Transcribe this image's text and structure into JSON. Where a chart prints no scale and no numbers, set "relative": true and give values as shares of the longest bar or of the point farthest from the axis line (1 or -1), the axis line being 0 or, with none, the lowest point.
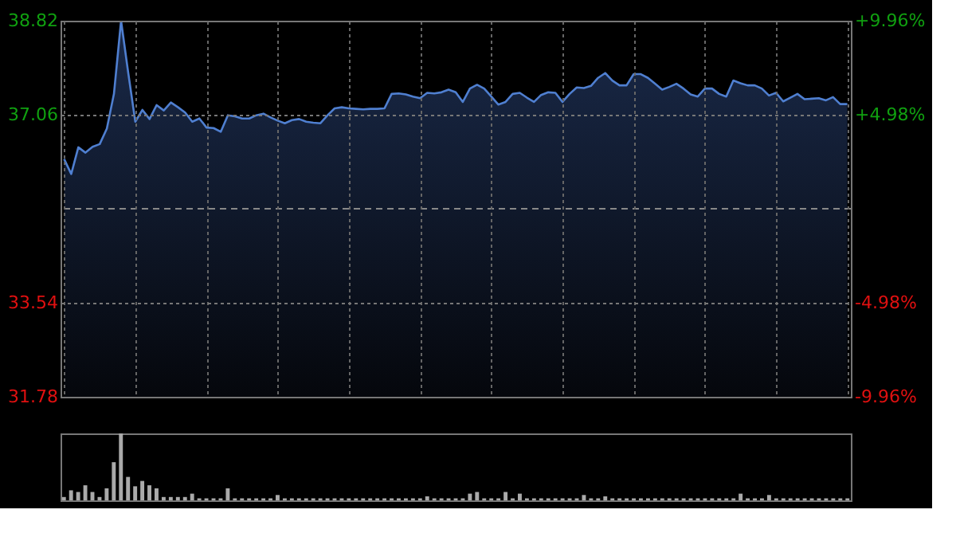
{
  "chart_data": [
    {
      "type": "area",
      "categories": [
        null,
        null,
        null,
        null,
        null,
        null,
        null,
        null,
        null,
        null,
        null,
        null,
        null,
        null,
        null,
        null,
        null,
        null,
        null,
        null,
        null,
        null,
        null,
        null,
        null,
        null,
        null,
        null,
        null,
        null,
        null,
        null,
        null,
        null,
        null,
        null,
        null,
        null,
        null,
        null,
        null,
        null,
        null,
        null,
        null,
        null,
        null,
        null,
        null,
        null,
        null,
        null,
        null,
        null,
        null,
        null,
        null,
        null,
        null,
        null,
        null,
        null,
        null,
        null,
        null,
        null,
        null,
        null,
        null,
        null,
        null,
        null,
        null,
        null,
        null,
        null,
        null,
        null,
        null,
        null,
        null,
        null,
        null,
        null,
        null,
        null,
        null,
        null,
        null,
        null,
        null,
        null,
        null,
        null,
        null,
        null,
        null,
        null,
        null,
        null,
        null,
        null,
        null,
        null,
        null,
        null,
        null,
        null,
        null,
        null,
        null
      ],
      "ylim": [
        31.78,
        38.82
      ],
      "yticks": [
        31.78,
        33.54,
        37.06,
        38.82
      ],
      "y2lim": [
        -9.96,
        9.96
      ],
      "y2ticks": [
        {
          "value": -9.96,
          "label": "-9.96%"
        },
        {
          "value": -4.98,
          "label": "-4.98%"
        },
        {
          "value": 4.98,
          "label": "+4.98%"
        },
        {
          "value": 9.96,
          "label": "+9.96%"
        }
      ],
      "grid": true,
      "tick_labels": "y",
      "line_style": "solid",
      "ref_lines": [
        {
          "axis": "y2",
          "value": 0,
          "color": "#888888",
          "line_style": "dashed"
        }
      ],
      "series": [
        {
          "color": "#4f7fd0",
          "values": [
            36.23,
            35.95,
            36.45,
            36.35,
            36.46,
            36.51,
            36.8,
            37.45,
            38.82,
            37.85,
            36.93,
            37.15,
            36.98,
            37.24,
            37.14,
            37.29,
            37.2,
            37.1,
            36.93,
            36.99,
            36.82,
            36.81,
            36.74,
            37.05,
            37.03,
            36.99,
            36.99,
            37.05,
            37.08,
            37.01,
            36.95,
            36.9,
            36.96,
            36.98,
            36.93,
            36.91,
            36.9,
            37.05,
            37.18,
            37.2,
            37.18,
            37.17,
            37.16,
            37.17,
            37.17,
            37.18,
            37.45,
            37.46,
            37.44,
            37.4,
            37.37,
            37.47,
            37.46,
            37.48,
            37.53,
            37.48,
            37.3,
            37.55,
            37.62,
            37.55,
            37.4,
            37.25,
            37.3,
            37.45,
            37.47,
            37.38,
            37.3,
            37.43,
            37.48,
            37.47,
            37.3,
            37.45,
            37.57,
            37.56,
            37.6,
            37.75,
            37.84,
            37.7,
            37.61,
            37.61,
            37.82,
            37.82,
            37.75,
            37.64,
            37.53,
            37.58,
            37.64,
            37.55,
            37.44,
            37.4,
            37.55,
            37.55,
            37.45,
            37.4,
            37.7,
            37.65,
            37.61,
            37.61,
            37.55,
            37.42,
            37.47,
            37.31,
            37.38,
            37.45,
            37.35,
            37.36,
            37.37,
            37.33,
            37.39,
            37.26,
            37.26
          ]
        }
      ]
    },
    {
      "type": "bar",
      "relative": true,
      "tick_labels": false,
      "categories": [
        null,
        null,
        null,
        null,
        null,
        null,
        null,
        null,
        null,
        null,
        null,
        null,
        null,
        null,
        null,
        null,
        null,
        null,
        null,
        null,
        null,
        null,
        null,
        null,
        null,
        null,
        null,
        null,
        null,
        null,
        null,
        null,
        null,
        null,
        null,
        null,
        null,
        null,
        null,
        null,
        null,
        null,
        null,
        null,
        null,
        null,
        null,
        null,
        null,
        null,
        null,
        null,
        null,
        null,
        null,
        null,
        null,
        null,
        null,
        null,
        null,
        null,
        null,
        null,
        null,
        null,
        null,
        null,
        null,
        null,
        null,
        null,
        null,
        null,
        null,
        null,
        null,
        null,
        null,
        null,
        null,
        null,
        null,
        null,
        null,
        null,
        null,
        null,
        null,
        null,
        null,
        null,
        null,
        null,
        null,
        null,
        null,
        null,
        null,
        null,
        null,
        null,
        null,
        null,
        null,
        null,
        null,
        null,
        null,
        null,
        null
      ],
      "series": [
        {
          "color": "#aaaaaa",
          "values": [
            0.05,
            0.15,
            0.125,
            0.225,
            0.125,
            0.05,
            0.18,
            0.57,
            1.0,
            0.35,
            0.21,
            0.29,
            0.225,
            0.18,
            0.05,
            0.05,
            0.05,
            0.05,
            0.1,
            0.03,
            0.03,
            0.03,
            0.03,
            0.18,
            0.03,
            0.03,
            0.03,
            0.03,
            0.03,
            0.03,
            0.08,
            0.03,
            0.03,
            0.03,
            0.03,
            0.03,
            0.03,
            0.03,
            0.03,
            0.03,
            0.03,
            0.03,
            0.03,
            0.03,
            0.03,
            0.03,
            0.03,
            0.03,
            0.03,
            0.03,
            0.03,
            0.06,
            0.03,
            0.03,
            0.03,
            0.03,
            0.03,
            0.1,
            0.125,
            0.03,
            0.03,
            0.03,
            0.125,
            0.03,
            0.1,
            0.03,
            0.03,
            0.03,
            0.03,
            0.03,
            0.03,
            0.03,
            0.03,
            0.08,
            0.03,
            0.03,
            0.06,
            0.03,
            0.03,
            0.03,
            0.03,
            0.03,
            0.03,
            0.03,
            0.03,
            0.03,
            0.03,
            0.03,
            0.03,
            0.03,
            0.03,
            0.03,
            0.03,
            0.03,
            0.03,
            0.1,
            0.03,
            0.03,
            0.03,
            0.08,
            0.03,
            0.03,
            0.03,
            0.03,
            0.03,
            0.03,
            0.03,
            0.03,
            0.03,
            0.03,
            0.03
          ]
        }
      ]
    }
  ]
}
